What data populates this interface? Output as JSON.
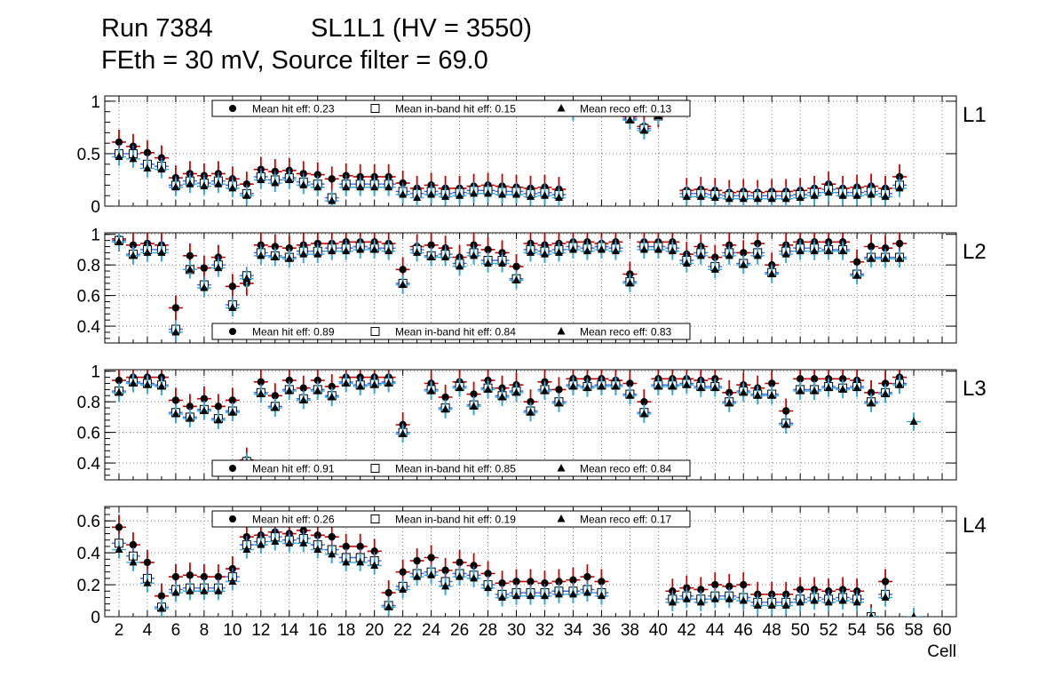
{
  "title": {
    "run": "Run 7384",
    "chamber": "SL1L1 (HV = 3550)",
    "conditions": "FEth = 30 mV, Source filter = 69.0"
  },
  "xlabel": "Cell",
  "colors": {
    "hit": "#000000",
    "hit_err": "#cc0000",
    "inband_err": "#3366ff",
    "reco_err": "#33aadd",
    "grid": "#666666"
  },
  "chart_data": [
    {
      "type": "scatter",
      "layer": "L1",
      "ylim": [
        0,
        1.05
      ],
      "yticks": [
        0,
        0.5,
        1
      ],
      "ytick_labels": [
        "0",
        "0.5",
        "1"
      ],
      "legend": {
        "hit": "Mean hit  eff: 0.23",
        "inband": "Mean in-band hit eff: 0.15",
        "reco": "Mean reco eff: 0.13",
        "position": "top"
      },
      "cells": [
        2,
        3,
        4,
        5,
        6,
        7,
        8,
        9,
        10,
        11,
        12,
        13,
        14,
        15,
        16,
        17,
        18,
        19,
        20,
        21,
        22,
        23,
        24,
        25,
        26,
        27,
        28,
        29,
        30,
        31,
        32,
        33,
        34,
        35,
        36,
        37,
        38,
        39,
        40,
        41,
        42,
        43,
        44,
        45,
        46,
        47,
        48,
        49,
        50,
        51,
        52,
        53,
        54,
        55,
        56,
        57
      ],
      "series": [
        {
          "name": "hit",
          "values": [
            0.61,
            0.57,
            0.51,
            0.46,
            0.27,
            0.31,
            0.29,
            0.31,
            0.26,
            0.21,
            0.35,
            0.33,
            0.34,
            0.31,
            0.3,
            0.26,
            0.29,
            0.28,
            0.28,
            0.28,
            0.22,
            0.17,
            0.2,
            0.17,
            0.17,
            0.19,
            0.2,
            0.19,
            0.18,
            0.17,
            0.18,
            0.16,
            null,
            null,
            null,
            null,
            0.85,
            0.76,
            0.87,
            null,
            0.15,
            0.16,
            0.15,
            0.13,
            0.14,
            0.13,
            0.14,
            0.14,
            0.15,
            0.17,
            0.21,
            0.17,
            0.18,
            0.19,
            0.17,
            0.28
          ]
        },
        {
          "name": "inband",
          "values": [
            0.5,
            0.5,
            0.4,
            0.38,
            0.2,
            0.24,
            0.22,
            0.24,
            0.2,
            0.12,
            0.28,
            0.25,
            0.27,
            0.23,
            0.21,
            0.08,
            0.21,
            0.21,
            0.21,
            0.21,
            0.14,
            0.12,
            0.14,
            0.12,
            0.13,
            0.15,
            0.15,
            0.14,
            0.14,
            0.12,
            0.13,
            0.11,
            null,
            null,
            null,
            null,
            0.83,
            0.74,
            0.86,
            null,
            0.12,
            0.12,
            0.11,
            0.1,
            0.1,
            0.1,
            0.1,
            0.1,
            0.11,
            0.13,
            0.16,
            0.13,
            0.13,
            0.14,
            0.12,
            0.2
          ]
        },
        {
          "name": "reco",
          "values": [
            0.47,
            0.45,
            0.36,
            0.35,
            0.18,
            0.21,
            0.19,
            0.21,
            0.17,
            0.1,
            0.25,
            0.22,
            0.25,
            0.2,
            0.18,
            0.05,
            0.18,
            0.18,
            0.18,
            0.18,
            0.11,
            0.08,
            0.11,
            0.09,
            0.1,
            0.12,
            0.12,
            0.11,
            0.11,
            0.09,
            0.1,
            0.08,
            0.9,
            null,
            null,
            null,
            0.82,
            0.72,
            0.86,
            null,
            0.09,
            0.09,
            0.08,
            0.07,
            0.07,
            0.07,
            0.07,
            0.07,
            0.08,
            0.1,
            0.13,
            0.1,
            0.1,
            0.11,
            0.09,
            0.17
          ]
        }
      ]
    },
    {
      "type": "scatter",
      "layer": "L2",
      "ylim": [
        0.29,
        1.01
      ],
      "yticks": [
        0.4,
        0.6,
        0.8,
        1
      ],
      "ytick_labels": [
        "0.4",
        "0.6",
        "0.8",
        "1"
      ],
      "legend": {
        "hit": "Mean hit  eff: 0.89",
        "inband": "Mean in-band hit eff: 0.84",
        "reco": "Mean reco eff: 0.83",
        "position": "bottom"
      },
      "cells": [
        2,
        3,
        4,
        5,
        6,
        7,
        8,
        9,
        10,
        11,
        12,
        13,
        14,
        15,
        16,
        17,
        18,
        19,
        20,
        21,
        22,
        23,
        24,
        25,
        26,
        27,
        28,
        29,
        30,
        31,
        32,
        33,
        34,
        35,
        36,
        37,
        38,
        39,
        40,
        41,
        42,
        43,
        44,
        45,
        46,
        47,
        48,
        49,
        50,
        51,
        52,
        53,
        54,
        55,
        56,
        57
      ],
      "series": [
        {
          "name": "hit",
          "values": [
            0.97,
            0.93,
            0.94,
            0.93,
            0.52,
            0.86,
            0.78,
            0.85,
            0.66,
            0.68,
            0.93,
            0.92,
            0.91,
            0.93,
            0.94,
            0.94,
            0.95,
            0.95,
            0.95,
            0.94,
            0.77,
            0.92,
            0.93,
            0.91,
            0.85,
            0.93,
            0.9,
            0.88,
            0.79,
            0.94,
            0.93,
            0.94,
            0.95,
            0.95,
            0.94,
            0.95,
            0.74,
            0.95,
            0.95,
            0.95,
            0.87,
            0.92,
            0.85,
            0.93,
            0.88,
            0.94,
            0.8,
            0.93,
            0.95,
            0.95,
            0.95,
            0.95,
            0.82,
            0.92,
            0.91,
            0.94
          ]
        },
        {
          "name": "inband",
          "values": [
            0.96,
            0.87,
            0.9,
            0.9,
            0.38,
            0.77,
            0.67,
            0.8,
            0.54,
            0.73,
            0.88,
            0.86,
            0.85,
            0.89,
            0.89,
            0.91,
            0.91,
            0.92,
            0.91,
            0.91,
            0.68,
            0.9,
            0.86,
            0.87,
            0.81,
            0.88,
            0.83,
            0.83,
            0.71,
            0.9,
            0.89,
            0.9,
            0.92,
            0.91,
            0.92,
            0.91,
            0.69,
            0.92,
            0.92,
            0.91,
            0.83,
            0.88,
            0.79,
            0.88,
            0.81,
            0.88,
            0.75,
            0.89,
            0.91,
            0.91,
            0.9,
            0.9,
            0.74,
            0.85,
            0.85,
            0.85
          ]
        },
        {
          "name": "reco",
          "values": [
            0.95,
            0.86,
            0.88,
            0.88,
            0.36,
            0.77,
            0.65,
            0.78,
            0.52,
            0.71,
            0.86,
            0.85,
            0.84,
            0.87,
            0.87,
            0.89,
            0.89,
            0.9,
            0.9,
            0.89,
            0.67,
            0.88,
            0.85,
            0.85,
            0.79,
            0.86,
            0.81,
            0.81,
            0.7,
            0.88,
            0.87,
            0.88,
            0.9,
            0.89,
            0.9,
            0.89,
            0.68,
            0.9,
            0.9,
            0.89,
            0.81,
            0.86,
            0.77,
            0.86,
            0.8,
            0.86,
            0.74,
            0.87,
            0.89,
            0.89,
            0.89,
            0.89,
            0.73,
            0.84,
            0.84,
            0.84
          ]
        }
      ]
    },
    {
      "type": "scatter",
      "layer": "L3",
      "ylim": [
        0.29,
        1.01
      ],
      "yticks": [
        0.4,
        0.6,
        0.8,
        1
      ],
      "ytick_labels": [
        "0.4",
        "0.6",
        "0.8",
        "1"
      ],
      "legend": {
        "hit": "Mean hit  eff: 0.91",
        "inband": "Mean in-band hit eff: 0.85",
        "reco": "Mean reco eff: 0.84",
        "position": "bottom"
      },
      "cells": [
        2,
        3,
        4,
        5,
        6,
        7,
        8,
        9,
        10,
        11,
        12,
        13,
        14,
        15,
        16,
        17,
        18,
        19,
        20,
        21,
        22,
        23,
        24,
        25,
        26,
        27,
        28,
        29,
        30,
        31,
        32,
        33,
        34,
        35,
        36,
        37,
        38,
        39,
        40,
        41,
        42,
        43,
        44,
        45,
        46,
        47,
        48,
        49,
        50,
        51,
        52,
        53,
        54,
        55,
        56,
        57,
        58
      ],
      "series": [
        {
          "name": "hit",
          "values": [
            0.94,
            0.96,
            0.96,
            0.96,
            0.81,
            0.77,
            0.82,
            0.77,
            0.81,
            0.42,
            0.93,
            0.84,
            0.94,
            0.89,
            0.94,
            0.9,
            0.96,
            0.96,
            0.96,
            0.96,
            0.65,
            null,
            0.92,
            0.83,
            0.93,
            0.85,
            0.94,
            0.89,
            0.91,
            0.8,
            0.93,
            0.88,
            0.95,
            0.95,
            0.95,
            0.94,
            0.92,
            0.8,
            0.95,
            0.95,
            0.95,
            0.94,
            0.95,
            0.86,
            0.91,
            0.89,
            0.92,
            0.74,
            0.95,
            0.95,
            0.95,
            0.95,
            0.94,
            0.86,
            0.92,
            0.96,
            null
          ]
        },
        {
          "name": "inband",
          "values": [
            0.87,
            0.93,
            0.92,
            0.91,
            0.73,
            0.7,
            0.75,
            0.69,
            0.74,
            0.41,
            0.86,
            0.77,
            0.88,
            0.82,
            0.88,
            0.84,
            0.93,
            0.91,
            0.92,
            0.93,
            0.6,
            null,
            0.88,
            0.76,
            0.9,
            0.78,
            0.89,
            0.84,
            0.87,
            0.74,
            0.88,
            0.8,
            0.91,
            0.9,
            0.91,
            0.91,
            0.85,
            0.73,
            0.91,
            0.91,
            0.92,
            0.9,
            0.9,
            0.8,
            0.87,
            0.85,
            0.85,
            0.66,
            0.88,
            0.88,
            0.9,
            0.89,
            0.9,
            0.8,
            0.86,
            0.92,
            null
          ]
        },
        {
          "name": "reco",
          "values": [
            0.86,
            0.92,
            0.91,
            0.9,
            0.72,
            0.69,
            0.74,
            0.68,
            0.73,
            0.4,
            0.85,
            0.76,
            0.87,
            0.81,
            0.87,
            0.83,
            0.92,
            0.9,
            0.91,
            0.92,
            0.59,
            null,
            0.87,
            0.75,
            0.89,
            0.77,
            0.88,
            0.83,
            0.86,
            0.73,
            0.87,
            0.79,
            0.9,
            0.89,
            0.9,
            0.9,
            0.84,
            0.72,
            0.9,
            0.9,
            0.91,
            0.89,
            0.89,
            0.79,
            0.86,
            0.84,
            0.84,
            0.65,
            0.87,
            0.87,
            0.89,
            0.88,
            0.89,
            0.79,
            0.85,
            0.91,
            0.67
          ]
        }
      ]
    },
    {
      "type": "scatter",
      "layer": "L4",
      "ylim": [
        0,
        0.69
      ],
      "yticks": [
        0,
        0.2,
        0.4,
        0.6
      ],
      "ytick_labels": [
        "0",
        "0.2",
        "0.4",
        "0.6"
      ],
      "legend": {
        "hit": "Mean hit  eff: 0.26",
        "inband": "Mean in-band hit eff: 0.19",
        "reco": "Mean reco eff: 0.17",
        "position": "top"
      },
      "cells": [
        2,
        3,
        4,
        5,
        6,
        7,
        8,
        9,
        10,
        11,
        12,
        13,
        14,
        15,
        16,
        17,
        18,
        19,
        20,
        21,
        22,
        23,
        24,
        25,
        26,
        27,
        28,
        29,
        30,
        31,
        32,
        33,
        34,
        35,
        36,
        37,
        38,
        39,
        40,
        41,
        42,
        43,
        44,
        45,
        46,
        47,
        48,
        49,
        50,
        51,
        52,
        53,
        54,
        55,
        56,
        57,
        58
      ],
      "series": [
        {
          "name": "hit",
          "values": [
            0.56,
            0.45,
            0.34,
            0.13,
            0.25,
            0.26,
            0.25,
            0.25,
            0.3,
            0.5,
            0.51,
            0.53,
            0.52,
            0.54,
            0.51,
            0.5,
            0.44,
            0.44,
            0.41,
            0.15,
            0.28,
            0.35,
            0.37,
            0.29,
            0.34,
            0.32,
            0.27,
            0.21,
            0.22,
            0.22,
            0.21,
            0.22,
            0.23,
            0.25,
            0.22,
            null,
            null,
            null,
            null,
            0.16,
            0.18,
            0.17,
            0.2,
            0.19,
            0.2,
            0.14,
            0.14,
            0.14,
            0.17,
            0.17,
            0.16,
            0.17,
            0.16,
            0.0,
            0.22,
            null,
            null
          ]
        },
        {
          "name": "inband",
          "values": [
            0.46,
            0.38,
            0.24,
            0.06,
            0.17,
            0.18,
            0.18,
            0.18,
            0.25,
            0.45,
            0.47,
            0.5,
            0.48,
            0.49,
            0.45,
            0.42,
            0.37,
            0.37,
            0.35,
            0.07,
            0.19,
            0.27,
            0.28,
            0.22,
            0.27,
            0.26,
            0.2,
            0.14,
            0.15,
            0.15,
            0.15,
            0.16,
            0.16,
            0.17,
            0.15,
            null,
            null,
            null,
            null,
            0.11,
            0.13,
            0.11,
            0.13,
            0.13,
            0.12,
            0.09,
            0.09,
            0.09,
            0.11,
            0.12,
            0.11,
            0.12,
            0.11,
            0.0,
            0.14,
            null,
            null
          ]
        },
        {
          "name": "reco",
          "values": [
            0.42,
            0.34,
            0.21,
            0.05,
            0.15,
            0.16,
            0.16,
            0.16,
            0.22,
            0.42,
            0.45,
            0.47,
            0.46,
            0.46,
            0.42,
            0.39,
            0.34,
            0.34,
            0.32,
            0.06,
            0.17,
            0.25,
            0.26,
            0.19,
            0.25,
            0.24,
            0.18,
            0.12,
            0.13,
            0.13,
            0.13,
            0.14,
            0.14,
            0.15,
            0.13,
            null,
            null,
            null,
            null,
            0.09,
            0.11,
            0.09,
            0.11,
            0.11,
            0.1,
            0.07,
            0.07,
            0.07,
            0.09,
            0.1,
            0.09,
            0.1,
            0.09,
            0.0,
            0.12,
            null,
            0.0
          ]
        }
      ]
    }
  ],
  "xaxis": {
    "range": [
      1,
      61
    ],
    "ticks": [
      2,
      4,
      6,
      8,
      10,
      12,
      14,
      16,
      18,
      20,
      22,
      24,
      26,
      28,
      30,
      32,
      34,
      36,
      38,
      40,
      42,
      44,
      46,
      48,
      50,
      52,
      54,
      56,
      58,
      60
    ],
    "tick_labels": [
      "2",
      "4",
      "6",
      "8",
      "10",
      "12",
      "14",
      "16",
      "18",
      "20",
      "22",
      "24",
      "26",
      "28",
      "30",
      "32",
      "34",
      "36",
      "38",
      "40",
      "42",
      "44",
      "46",
      "48",
      "50",
      "52",
      "54",
      "56",
      "58",
      "60"
    ]
  }
}
